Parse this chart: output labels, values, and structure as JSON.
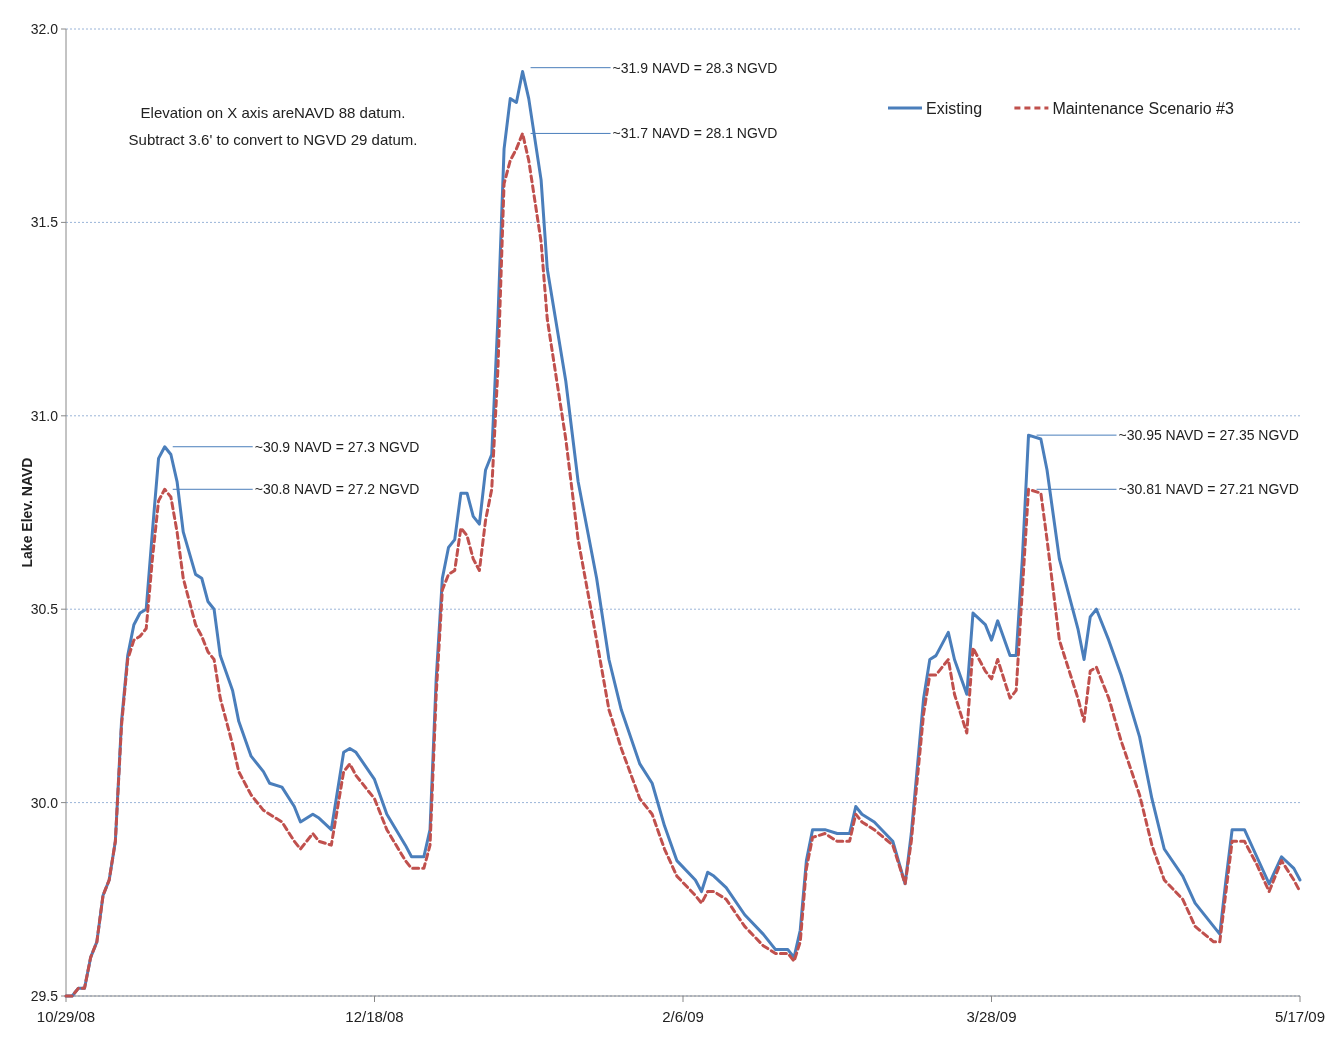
{
  "chart_data": {
    "type": "line",
    "ylabel": "Lake Elev. NAVD",
    "x": [
      "2008-10-29",
      "2008-10-30",
      "2008-10-31",
      "2008-11-01",
      "2008-11-02",
      "2008-11-03",
      "2008-11-04",
      "2008-11-05",
      "2008-11-06",
      "2008-11-07",
      "2008-11-08",
      "2008-11-09",
      "2008-11-10",
      "2008-11-11",
      "2008-11-12",
      "2008-11-13",
      "2008-11-14",
      "2008-11-15",
      "2008-11-16",
      "2008-11-17",
      "2008-11-19",
      "2008-11-20",
      "2008-11-21",
      "2008-11-22",
      "2008-11-23",
      "2008-11-25",
      "2008-11-26",
      "2008-11-28",
      "2008-11-30",
      "2008-12-01",
      "2008-12-03",
      "2008-12-05",
      "2008-12-06",
      "2008-12-08",
      "2008-12-09",
      "2008-12-11",
      "2008-12-13",
      "2008-12-14",
      "2008-12-15",
      "2008-12-18",
      "2008-12-20",
      "2008-12-23",
      "2008-12-24",
      "2008-12-26",
      "2008-12-27",
      "2008-12-28",
      "2008-12-29",
      "2008-12-30",
      "2008-12-31",
      "2009-01-01",
      "2009-01-02",
      "2009-01-03",
      "2009-01-04",
      "2009-01-05",
      "2009-01-06",
      "2009-01-07",
      "2009-01-08",
      "2009-01-09",
      "2009-01-10",
      "2009-01-11",
      "2009-01-12",
      "2009-01-14",
      "2009-01-15",
      "2009-01-18",
      "2009-01-20",
      "2009-01-23",
      "2009-01-25",
      "2009-01-27",
      "2009-01-30",
      "2009-02-01",
      "2009-02-03",
      "2009-02-05",
      "2009-02-08",
      "2009-02-09",
      "2009-02-10",
      "2009-02-11",
      "2009-02-13",
      "2009-02-16",
      "2009-02-19",
      "2009-02-21",
      "2009-02-23",
      "2009-02-24",
      "2009-02-25",
      "2009-02-26",
      "2009-02-27",
      "2009-03-01",
      "2009-03-03",
      "2009-03-05",
      "2009-03-06",
      "2009-03-07",
      "2009-03-09",
      "2009-03-12",
      "2009-03-14",
      "2009-03-15",
      "2009-03-17",
      "2009-03-18",
      "2009-03-19",
      "2009-03-21",
      "2009-03-22",
      "2009-03-24",
      "2009-03-25",
      "2009-03-27",
      "2009-03-28",
      "2009-03-29",
      "2009-03-31",
      "2009-04-01",
      "2009-04-02",
      "2009-04-03",
      "2009-04-05",
      "2009-04-06",
      "2009-04-08",
      "2009-04-11",
      "2009-04-12",
      "2009-04-13",
      "2009-04-14",
      "2009-04-16",
      "2009-04-18",
      "2009-04-21",
      "2009-04-23",
      "2009-04-25",
      "2009-04-28",
      "2009-04-30",
      "2009-05-03",
      "2009-05-04",
      "2009-05-05",
      "2009-05-06",
      "2009-05-08",
      "2009-05-10",
      "2009-05-12",
      "2009-05-14",
      "2009-05-16",
      "2009-05-17"
    ],
    "series": [
      {
        "name": "Existing",
        "color": "#4a7ebb",
        "line_style": "solid",
        "values": [
          29.5,
          29.5,
          29.52,
          29.52,
          29.6,
          29.64,
          29.76,
          29.8,
          29.9,
          30.21,
          30.38,
          30.46,
          30.49,
          30.5,
          30.7,
          30.89,
          30.92,
          30.9,
          30.83,
          30.7,
          30.59,
          30.58,
          30.52,
          30.5,
          30.38,
          30.29,
          30.21,
          30.12,
          30.08,
          30.05,
          30.04,
          29.99,
          29.95,
          29.97,
          29.96,
          29.93,
          30.13,
          30.14,
          30.13,
          30.06,
          29.97,
          29.89,
          29.86,
          29.86,
          29.93,
          30.32,
          30.58,
          30.66,
          30.68,
          30.8,
          30.8,
          30.74,
          30.72,
          30.86,
          30.9,
          31.25,
          31.69,
          31.82,
          31.81,
          31.89,
          31.82,
          31.61,
          31.38,
          31.09,
          30.83,
          30.58,
          30.37,
          30.24,
          30.1,
          30.05,
          29.94,
          29.85,
          29.8,
          29.77,
          29.82,
          29.81,
          29.78,
          29.71,
          29.66,
          29.62,
          29.62,
          29.6,
          29.67,
          29.85,
          29.93,
          29.93,
          29.92,
          29.92,
          29.99,
          29.97,
          29.95,
          29.9,
          29.79,
          29.92,
          30.27,
          30.37,
          30.38,
          30.44,
          30.37,
          30.28,
          30.49,
          30.46,
          30.42,
          30.47,
          30.38,
          30.38,
          30.63,
          30.95,
          30.94,
          30.86,
          30.63,
          30.45,
          30.37,
          30.48,
          30.5,
          30.42,
          30.33,
          30.17,
          30.01,
          29.88,
          29.81,
          29.74,
          29.68,
          29.66,
          29.8,
          29.93,
          29.93,
          29.86,
          29.79,
          29.86,
          29.83,
          29.8
        ]
      },
      {
        "name": "Maintenance Scenario #3",
        "color": "#c0504d",
        "line_style": "dashed",
        "values": [
          29.5,
          29.5,
          29.52,
          29.52,
          29.6,
          29.64,
          29.76,
          29.8,
          29.9,
          30.2,
          30.37,
          30.42,
          30.43,
          30.45,
          30.63,
          30.78,
          30.81,
          30.79,
          30.7,
          30.58,
          30.46,
          30.43,
          30.39,
          30.37,
          30.27,
          30.15,
          30.08,
          30.02,
          29.98,
          29.97,
          29.95,
          29.9,
          29.88,
          29.92,
          29.9,
          29.89,
          30.08,
          30.1,
          30.07,
          30.01,
          29.93,
          29.85,
          29.83,
          29.83,
          29.89,
          30.28,
          30.55,
          30.59,
          30.6,
          30.71,
          30.69,
          30.63,
          30.6,
          30.73,
          30.81,
          31.12,
          31.6,
          31.66,
          31.69,
          31.73,
          31.66,
          31.45,
          31.25,
          30.94,
          30.68,
          30.42,
          30.24,
          30.14,
          30.01,
          29.97,
          29.88,
          29.81,
          29.76,
          29.74,
          29.77,
          29.77,
          29.75,
          29.68,
          29.63,
          29.61,
          29.61,
          29.59,
          29.64,
          29.83,
          29.91,
          29.92,
          29.9,
          29.9,
          29.97,
          29.95,
          29.93,
          29.89,
          29.79,
          29.9,
          30.23,
          30.33,
          30.33,
          30.37,
          30.28,
          30.18,
          30.4,
          30.34,
          30.32,
          30.37,
          30.27,
          30.29,
          30.55,
          30.81,
          30.8,
          30.68,
          30.42,
          30.27,
          30.21,
          30.34,
          30.35,
          30.27,
          30.16,
          30.02,
          29.89,
          29.8,
          29.75,
          29.68,
          29.64,
          29.64,
          29.77,
          29.9,
          29.9,
          29.84,
          29.77,
          29.85,
          29.8,
          29.77
        ]
      }
    ],
    "xlim": [
      "2008-10-29",
      "2009-05-17"
    ],
    "xticks": [
      {
        "value": "2008-10-29",
        "label": "10/29/08"
      },
      {
        "value": "2008-12-18",
        "label": "12/18/08"
      },
      {
        "value": "2009-02-06",
        "label": "2/6/09"
      },
      {
        "value": "2009-03-28",
        "label": "3/28/09"
      },
      {
        "value": "2009-05-17",
        "label": "5/17/09"
      }
    ],
    "ylim": [
      29.5,
      32.0
    ],
    "yticks": [
      29.5,
      {
        "value": 30,
        "label": "30.0"
      },
      30.5,
      {
        "value": 31,
        "label": "31.0"
      },
      31.5,
      {
        "value": 32,
        "label": "32.0"
      }
    ],
    "grid": "y",
    "legend": "top right",
    "annotations": [
      "Elevation  on X axis areNAVD 88 datum.\nSubtract 3.6' to convert to NGVD 29 datum.",
      {
        "text": "~31.9 NAVD = 28.3 NGVD",
        "x": "2009-01-11",
        "y": 31.9
      },
      {
        "text": "~31.7 NAVD = 28.1 NGVD",
        "x": "2009-01-11",
        "y": 31.73
      },
      {
        "text": "~30.9 NAVD = 27.3 NGVD",
        "x": "2008-11-14",
        "y": 30.92
      },
      {
        "text": "~30.8 NAVD = 27.2 NGVD",
        "x": "2008-11-14",
        "y": 30.81
      },
      {
        "text": "~30.95 NAVD = 27.35 NGVD",
        "x": "2009-04-03",
        "y": 30.95
      },
      {
        "text": "~30.81 NAVD = 27.21 NGVD",
        "x": "2009-04-03",
        "y": 30.81
      }
    ]
  }
}
